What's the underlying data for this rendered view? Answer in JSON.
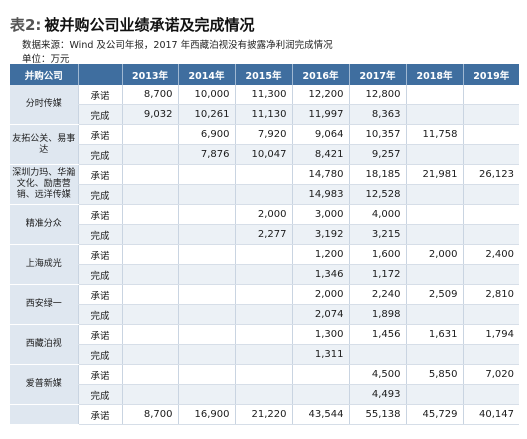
{
  "title": {
    "label": "表2:",
    "text": "被并购公司业绩承诺及完成情况"
  },
  "source": "数据来源：Wind 及公司年报，2017 年西藏泊视没有披露净利润完成情况",
  "unit": "单位：万元",
  "table": {
    "headers": [
      "并购公司",
      "",
      "2013年",
      "2014年",
      "2015年",
      "2016年",
      "2017年",
      "2018年",
      "2019年"
    ],
    "companies": [
      {
        "name": "分时传媒",
        "rows": [
          {
            "type": "承诺",
            "values": [
              "8,700",
              "10,000",
              "11,300",
              "12,200",
              "12,800",
              "",
              ""
            ]
          },
          {
            "type": "完成",
            "values": [
              "9,032",
              "10,261",
              "11,130",
              "11,997",
              "8,363",
              "",
              ""
            ]
          }
        ]
      },
      {
        "name": "友拓公关、易事达",
        "rows": [
          {
            "type": "承诺",
            "values": [
              "",
              "6,900",
              "7,920",
              "9,064",
              "10,357",
              "11,758",
              ""
            ]
          },
          {
            "type": "完成",
            "values": [
              "",
              "7,876",
              "10,047",
              "8,421",
              "9,257",
              "",
              ""
            ]
          }
        ]
      },
      {
        "name": "深圳力玛、华瀚文化、励唐营销、远洋传媒",
        "rows": [
          {
            "type": "承诺",
            "values": [
              "",
              "",
              "",
              "14,780",
              "18,185",
              "21,981",
              "26,123"
            ]
          },
          {
            "type": "完成",
            "values": [
              "",
              "",
              "",
              "14,983",
              "12,528",
              "",
              ""
            ]
          }
        ]
      },
      {
        "name": "精准分众",
        "rows": [
          {
            "type": "承诺",
            "values": [
              "",
              "",
              "2,000",
              "3,000",
              "4,000",
              "",
              ""
            ]
          },
          {
            "type": "完成",
            "values": [
              "",
              "",
              "2,277",
              "3,192",
              "3,215",
              "",
              ""
            ]
          }
        ]
      },
      {
        "name": "上海成光",
        "rows": [
          {
            "type": "承诺",
            "values": [
              "",
              "",
              "",
              "1,200",
              "1,600",
              "2,000",
              "2,400"
            ]
          },
          {
            "type": "完成",
            "values": [
              "",
              "",
              "",
              "1,346",
              "1,172",
              "",
              ""
            ]
          }
        ]
      },
      {
        "name": "西安绿一",
        "rows": [
          {
            "type": "承诺",
            "values": [
              "",
              "",
              "",
              "2,000",
              "2,240",
              "2,509",
              "2,810"
            ]
          },
          {
            "type": "完成",
            "values": [
              "",
              "",
              "",
              "2,074",
              "1,898",
              "",
              ""
            ]
          }
        ]
      },
      {
        "name": "西藏泊视",
        "rows": [
          {
            "type": "承诺",
            "values": [
              "",
              "",
              "",
              "1,300",
              "1,456",
              "1,631",
              "1,794"
            ]
          },
          {
            "type": "完成",
            "values": [
              "",
              "",
              "",
              "1,311",
              "",
              "",
              ""
            ]
          }
        ]
      },
      {
        "name": "爱普新媒",
        "rows": [
          {
            "type": "承诺",
            "values": [
              "",
              "",
              "",
              "",
              "4,500",
              "5,850",
              "7,020"
            ]
          },
          {
            "type": "完成",
            "values": [
              "",
              "",
              "",
              "",
              "4,493",
              "",
              ""
            ]
          }
        ]
      },
      {
        "name": "",
        "rows": [
          {
            "type": "承诺",
            "values": [
              "8,700",
              "16,900",
              "21,220",
              "43,544",
              "55,138",
              "45,729",
              "40,147"
            ]
          }
        ]
      }
    ]
  }
}
